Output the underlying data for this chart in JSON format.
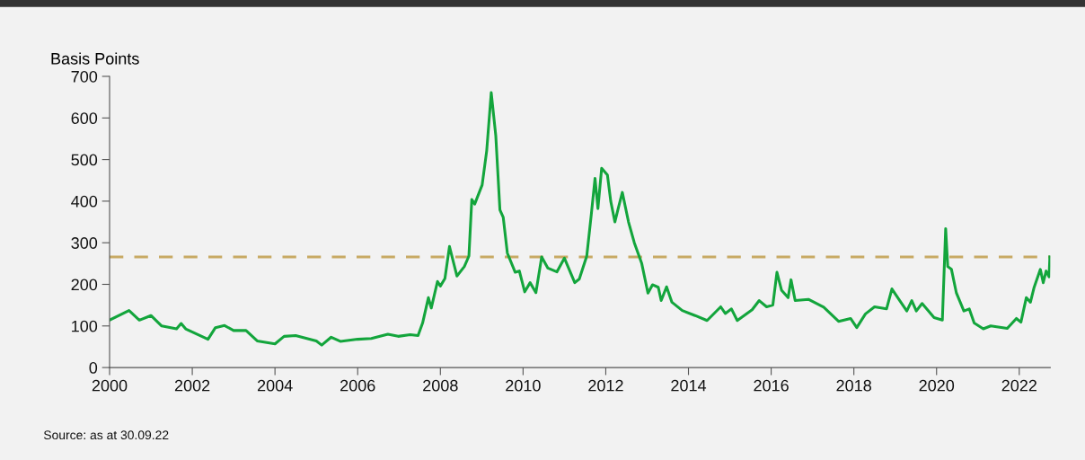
{
  "chart_data": {
    "type": "line",
    "ylabel": "Basis Points",
    "annotations": [
      "Source: as at 30.09.22"
    ],
    "series": [
      {
        "color": "#13a53c",
        "x": [
          2000,
          2000.47,
          2000.72,
          2001.0,
          2001.26,
          2001.62,
          2001.73,
          2001.84,
          2002.38,
          2002.56,
          2002.78,
          2003.0,
          2003.3,
          2003.57,
          2004.0,
          2004.22,
          2004.5,
          2005.0,
          2005.13,
          2005.36,
          2005.58,
          2006.0,
          2006.33,
          2006.73,
          2006.98,
          2007.27,
          2007.46,
          2007.57,
          2007.71,
          2007.78,
          2007.93,
          2008.0,
          2008.11,
          2008.22,
          2008.4,
          2008.58,
          2008.69,
          2008.76,
          2008.83,
          2008.94,
          2009.01,
          2009.12,
          2009.23,
          2009.34,
          2009.44,
          2009.52,
          2009.62,
          2009.81,
          2009.91,
          2010.04,
          2010.17,
          2010.31,
          2010.45,
          2010.6,
          2010.82,
          2011.0,
          2011.25,
          2011.36,
          2011.54,
          2011.65,
          2011.74,
          2011.81,
          2011.9,
          2012.04,
          2012.12,
          2012.22,
          2012.3,
          2012.4,
          2012.55,
          2012.69,
          2012.87,
          2013.02,
          2013.13,
          2013.27,
          2013.34,
          2013.47,
          2013.6,
          2013.85,
          2014.16,
          2014.45,
          2014.78,
          2014.89,
          2015.04,
          2015.18,
          2015.54,
          2015.71,
          2015.89,
          2016.04,
          2016.14,
          2016.25,
          2016.41,
          2016.48,
          2016.58,
          2016.9,
          2017.27,
          2017.63,
          2017.92,
          2018.07,
          2018.28,
          2018.5,
          2018.79,
          2018.92,
          2019.11,
          2019.28,
          2019.4,
          2019.51,
          2019.65,
          2019.94,
          2020.14,
          2020.22,
          2020.27,
          2020.36,
          2020.48,
          2020.66,
          2020.79,
          2020.91,
          2021.13,
          2021.31,
          2021.71,
          2021.93,
          2022.04,
          2022.17,
          2022.27,
          2022.36,
          2022.51,
          2022.58,
          2022.65,
          2022.72,
          2022.74
        ],
        "values": [
          114,
          137,
          114,
          125,
          100,
          93,
          106,
          93,
          68,
          96,
          101,
          89,
          89,
          64,
          57,
          75,
          77,
          64,
          54,
          73,
          63,
          68,
          70,
          80,
          75,
          79,
          77,
          107,
          168,
          143,
          207,
          196,
          214,
          291,
          220,
          243,
          268,
          404,
          393,
          421,
          439,
          521,
          661,
          557,
          379,
          361,
          275,
          229,
          232,
          182,
          204,
          180,
          266,
          239,
          230,
          263,
          204,
          213,
          268,
          368,
          455,
          382,
          479,
          463,
          400,
          350,
          382,
          421,
          350,
          300,
          250,
          179,
          199,
          193,
          161,
          194,
          157,
          137,
          125,
          113,
          146,
          130,
          141,
          113,
          139,
          161,
          146,
          150,
          229,
          186,
          168,
          211,
          161,
          164,
          145,
          111,
          118,
          96,
          129,
          146,
          141,
          189,
          161,
          136,
          161,
          136,
          154,
          120,
          114,
          334,
          243,
          236,
          179,
          136,
          141,
          107,
          93,
          100,
          94,
          118,
          109,
          168,
          157,
          193,
          236,
          204,
          232,
          218,
          266
        ]
      }
    ],
    "xlim": [
      2000,
      2022.75
    ],
    "xticks": [
      2000,
      2002,
      2004,
      2006,
      2008,
      2010,
      2012,
      2014,
      2016,
      2018,
      2020,
      2022
    ],
    "ylim": [
      0,
      700
    ],
    "yticks": [
      0,
      100,
      200,
      300,
      400,
      500,
      600,
      700
    ],
    "ref_lines": [
      {
        "axis": "y",
        "value": 266,
        "color": "#c8aa64",
        "line_style": "dashed"
      }
    ],
    "grid": false,
    "legend": false
  }
}
